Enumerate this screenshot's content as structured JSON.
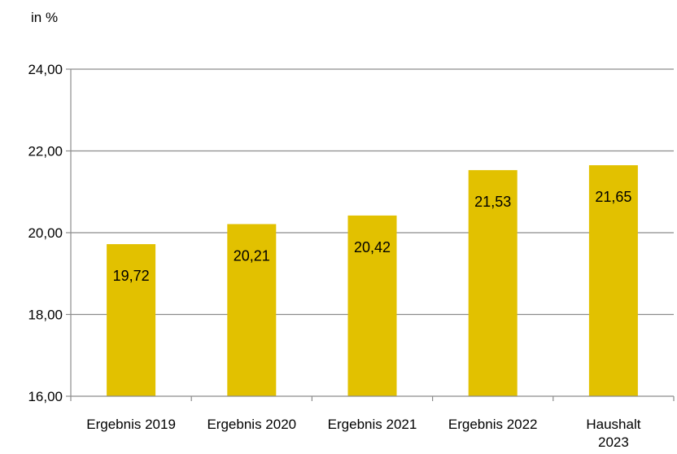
{
  "chart_data": {
    "type": "bar",
    "unit_label": "in %",
    "categories": [
      [
        "Ergebnis 2019"
      ],
      [
        "Ergebnis 2020"
      ],
      [
        "Ergebnis 2021"
      ],
      [
        "Ergebnis  2022"
      ],
      [
        "Haushalt",
        "2023"
      ]
    ],
    "values": [
      19.72,
      20.21,
      20.42,
      21.53,
      21.65
    ],
    "value_labels": [
      "19,72",
      "20,21",
      "20,42",
      "21,53",
      "21,65"
    ],
    "yticks": [
      16,
      18,
      20,
      22,
      24
    ],
    "ytick_labels": [
      "16,00",
      "18,00",
      "20,00",
      "22,00",
      "24,00"
    ],
    "ylim": [
      16,
      24
    ],
    "grid": true,
    "legend": "none",
    "bar_color": "#E2C100",
    "grid_color": "#8C8C8C"
  }
}
